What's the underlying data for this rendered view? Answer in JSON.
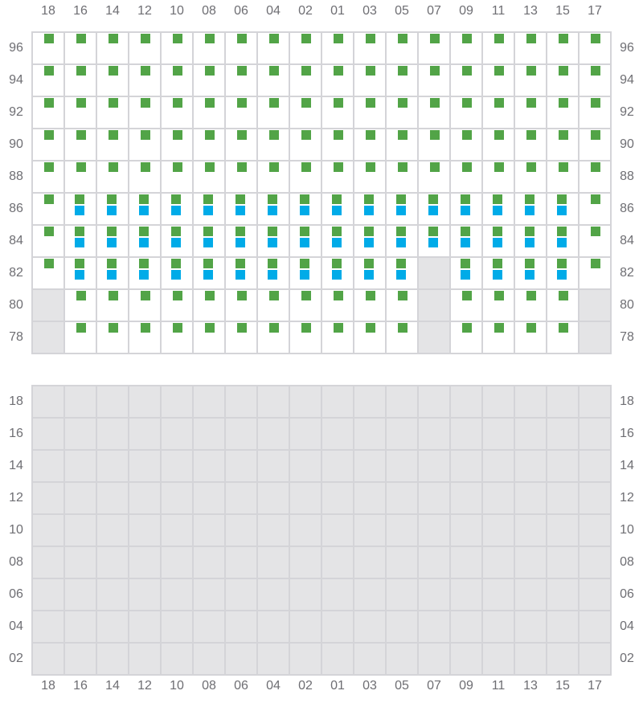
{
  "columns": [
    "18",
    "16",
    "14",
    "12",
    "10",
    "08",
    "06",
    "04",
    "02",
    "01",
    "03",
    "05",
    "07",
    "09",
    "11",
    "13",
    "15",
    "17"
  ],
  "colors": {
    "green": "#52a447",
    "blue": "#00abe8",
    "unavailable": "#e4e4e6",
    "border": "#d4d4d8"
  },
  "legend_codes": {
    "G": "green marker",
    "B": "green and blue markers",
    "X": "unavailable",
    "O": "empty"
  },
  "sections": [
    {
      "rows": [
        {
          "label": "96",
          "cells": "GGGGGGGGGGGGGGGGGG"
        },
        {
          "label": "94",
          "cells": "GGGGGGGGGGGGGGGGGG"
        },
        {
          "label": "92",
          "cells": "GGGGGGGGGGGGGGGGGG"
        },
        {
          "label": "90",
          "cells": "GGGGGGGGGGGGGGGGGG"
        },
        {
          "label": "88",
          "cells": "GGGGGGGGGGGGGGGGGG"
        },
        {
          "label": "86",
          "cells": "GBBBBBBBBBBBBBBBBG"
        },
        {
          "label": "84",
          "cells": "GBBBBBBBBBBBBBBBBG"
        },
        {
          "label": "82",
          "cells": "GBBBBBBBBBBBXBBBBG"
        },
        {
          "label": "80",
          "cells": "XGGGGGGGGGGGXGGGGX"
        },
        {
          "label": "78",
          "cells": "XGGGGGGGGGGGXGGGGX"
        }
      ]
    },
    {
      "rows": [
        {
          "label": "18",
          "cells": "XXXXXXXXXXXXXXXXXX"
        },
        {
          "label": "16",
          "cells": "XXXXXXXXXXXXXXXXXX"
        },
        {
          "label": "14",
          "cells": "XXXXXXXXXXXXXXXXXX"
        },
        {
          "label": "12",
          "cells": "XXXXXXXXXXXXXXXXXX"
        },
        {
          "label": "10",
          "cells": "XXXXXXXXXXXXXXXXXX"
        },
        {
          "label": "08",
          "cells": "XXXXXXXXXXXXXXXXXX"
        },
        {
          "label": "06",
          "cells": "XXXXXXXXXXXXXXXXXX"
        },
        {
          "label": "04",
          "cells": "XXXXXXXXXXXXXXXXXX"
        },
        {
          "label": "02",
          "cells": "XXXXXXXXXXXXXXXXXX"
        }
      ]
    }
  ]
}
